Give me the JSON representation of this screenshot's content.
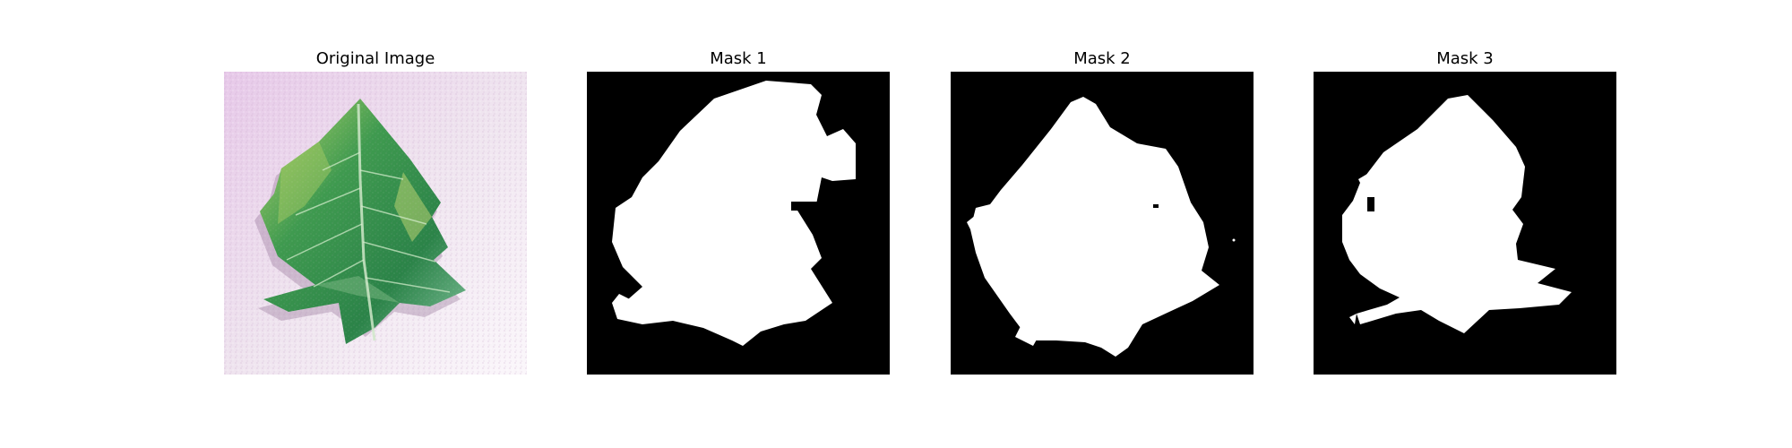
{
  "figure": {
    "panels": [
      {
        "title": "Original Image"
      },
      {
        "title": "Mask 1"
      },
      {
        "title": "Mask 2"
      },
      {
        "title": "Mask 3"
      }
    ]
  },
  "colors": {
    "background": "#ffffff",
    "mask_background": "#000000",
    "mask_foreground": "#ffffff",
    "photo_background": "#ecdcec",
    "leaf_dark": "#1f6f3a",
    "leaf_mid": "#3d9a55",
    "leaf_light": "#9fd36a",
    "leaf_yellow": "#d8e070"
  }
}
